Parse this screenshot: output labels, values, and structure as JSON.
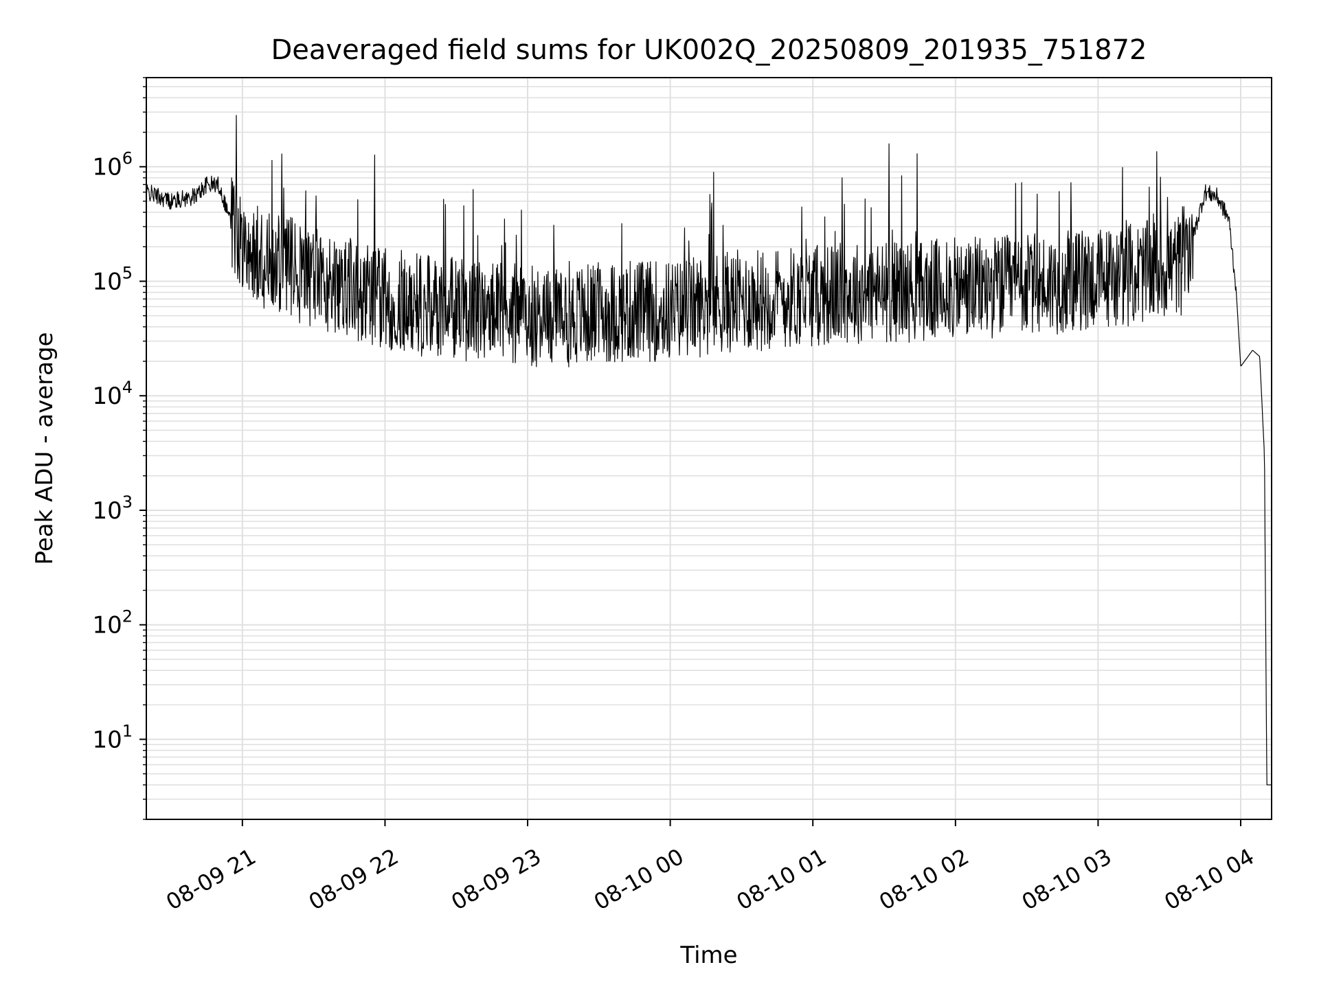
{
  "chart_data": {
    "type": "line",
    "title": "Deaveraged field sums for UK002Q_20250809_201935_751872",
    "xlabel": "Time",
    "ylabel": "Peak ADU - average",
    "yscale": "log",
    "ylim": [
      2,
      6000000
    ],
    "xlim": [
      "2025-08-09 20:19:35",
      "2025-08-10 04:13"
    ],
    "x_tick_labels": [
      "08-09 21",
      "08-09 22",
      "08-09 23",
      "08-10 00",
      "08-10 01",
      "08-10 02",
      "08-10 03",
      "08-10 04"
    ],
    "x_tick_values": [
      "2025-08-09 21:00",
      "2025-08-09 22:00",
      "2025-08-09 23:00",
      "2025-08-10 00:00",
      "2025-08-10 01:00",
      "2025-08-10 02:00",
      "2025-08-10 03:00",
      "2025-08-10 04:00"
    ],
    "y_ticks": [
      {
        "value": 10,
        "base": "10",
        "exp": "1"
      },
      {
        "value": 100,
        "base": "10",
        "exp": "2"
      },
      {
        "value": 1000,
        "base": "10",
        "exp": "3"
      },
      {
        "value": 10000,
        "base": "10",
        "exp": "4"
      },
      {
        "value": 100000,
        "base": "10",
        "exp": "5"
      },
      {
        "value": 1000000,
        "base": "10",
        "exp": "6"
      }
    ],
    "grid": true,
    "line_color": "#000000",
    "grid_color": "#e0e0e0",
    "series": [
      {
        "x": [
          "2025-08-09 20:20",
          "2025-08-09 20:30",
          "2025-08-09 20:40",
          "2025-08-09 20:45",
          "2025-08-09 20:50",
          "2025-08-09 20:55",
          "2025-08-09 21:00",
          "2025-08-09 21:05",
          "2025-08-09 21:10",
          "2025-08-09 21:20",
          "2025-08-09 21:30",
          "2025-08-09 21:45",
          "2025-08-09 22:00",
          "2025-08-09 22:20",
          "2025-08-09 22:40",
          "2025-08-09 23:00",
          "2025-08-09 23:20",
          "2025-08-09 23:40",
          "2025-08-10 00:00",
          "2025-08-10 00:20",
          "2025-08-10 00:40",
          "2025-08-10 01:00",
          "2025-08-10 01:20",
          "2025-08-10 01:40",
          "2025-08-10 02:00",
          "2025-08-10 02:20",
          "2025-08-10 02:40",
          "2025-08-10 03:00",
          "2025-08-10 03:20",
          "2025-08-10 03:35",
          "2025-08-10 03:40",
          "2025-08-10 03:45",
          "2025-08-10 03:50",
          "2025-08-10 03:55",
          "2025-08-10 03:58",
          "2025-08-10 04:00",
          "2025-08-10 04:05",
          "2025-08-10 04:08",
          "2025-08-10 04:10",
          "2025-08-10 04:11",
          "2025-08-10 04:12",
          "2025-08-10 04:13"
        ],
        "y": [
          600000,
          500000,
          550000,
          700000,
          700000,
          350000,
          250000,
          180000,
          150000,
          130000,
          110000,
          90000,
          70000,
          60000,
          55000,
          50000,
          50000,
          55000,
          55000,
          65000,
          70000,
          75000,
          80000,
          82000,
          85000,
          90000,
          95000,
          105000,
          120000,
          140000,
          250000,
          600000,
          550000,
          350000,
          90000,
          18000,
          25000,
          22000,
          3000,
          4,
          4,
          4
        ]
      }
    ]
  }
}
